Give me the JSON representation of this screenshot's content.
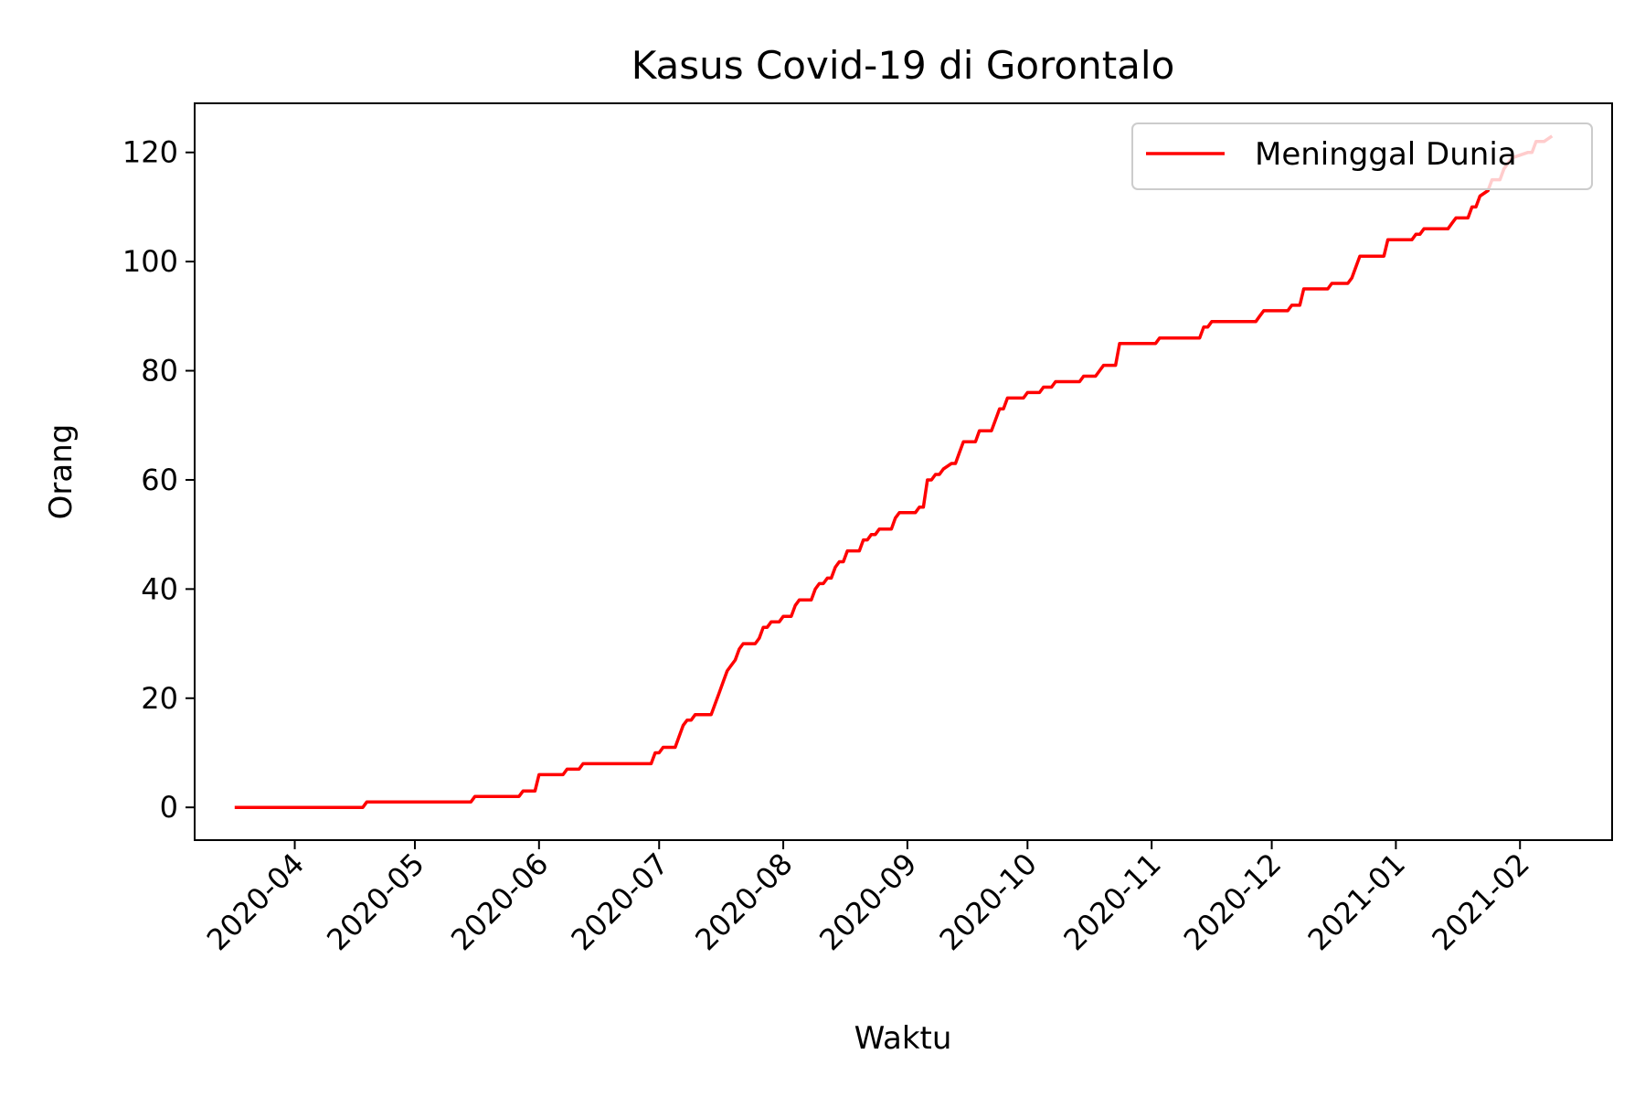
{
  "chart_data": {
    "type": "line",
    "title": "Kasus Covid-19 di Gorontalo",
    "xlabel": "Waktu",
    "ylabel": "Orang",
    "xlim": [
      "2020-03-07",
      "2021-02-24"
    ],
    "ylim": [
      -6,
      129
    ],
    "x_ticks": [
      "2020-04",
      "2020-05",
      "2020-06",
      "2020-07",
      "2020-08",
      "2020-09",
      "2020-10",
      "2020-11",
      "2020-12",
      "2021-01",
      "2021-02"
    ],
    "x_tick_dates": [
      "2020-04-01",
      "2020-05-01",
      "2020-06-01",
      "2020-07-01",
      "2020-08-01",
      "2020-09-01",
      "2020-10-01",
      "2020-11-01",
      "2020-12-01",
      "2021-01-01",
      "2021-02-01"
    ],
    "y_ticks": [
      0,
      20,
      40,
      60,
      80,
      100,
      120
    ],
    "grid": false,
    "legend": {
      "position": "top-right",
      "entries": [
        "Meninggal Dunia"
      ]
    },
    "series": [
      {
        "name": "Meninggal Dunia",
        "color": "#ff0000",
        "points": [
          [
            "2020-03-17",
            0
          ],
          [
            "2020-04-18",
            0
          ],
          [
            "2020-04-19",
            1
          ],
          [
            "2020-05-15",
            1
          ],
          [
            "2020-05-16",
            2
          ],
          [
            "2020-05-27",
            2
          ],
          [
            "2020-05-28",
            3
          ],
          [
            "2020-05-31",
            3
          ],
          [
            "2020-06-01",
            6
          ],
          [
            "2020-06-07",
            6
          ],
          [
            "2020-06-08",
            7
          ],
          [
            "2020-06-11",
            7
          ],
          [
            "2020-06-12",
            8
          ],
          [
            "2020-06-29",
            8
          ],
          [
            "2020-06-30",
            10
          ],
          [
            "2020-07-01",
            10
          ],
          [
            "2020-07-02",
            11
          ],
          [
            "2020-07-05",
            11
          ],
          [
            "2020-07-06",
            13
          ],
          [
            "2020-07-07",
            15
          ],
          [
            "2020-07-08",
            16
          ],
          [
            "2020-07-09",
            16
          ],
          [
            "2020-07-10",
            17
          ],
          [
            "2020-07-14",
            17
          ],
          [
            "2020-07-15",
            19
          ],
          [
            "2020-07-16",
            21
          ],
          [
            "2020-07-17",
            23
          ],
          [
            "2020-07-18",
            25
          ],
          [
            "2020-07-19",
            26
          ],
          [
            "2020-07-20",
            27
          ],
          [
            "2020-07-21",
            29
          ],
          [
            "2020-07-22",
            30
          ],
          [
            "2020-07-25",
            30
          ],
          [
            "2020-07-26",
            31
          ],
          [
            "2020-07-27",
            33
          ],
          [
            "2020-07-28",
            33
          ],
          [
            "2020-07-29",
            34
          ],
          [
            "2020-07-31",
            34
          ],
          [
            "2020-08-01",
            35
          ],
          [
            "2020-08-03",
            35
          ],
          [
            "2020-08-04",
            37
          ],
          [
            "2020-08-05",
            38
          ],
          [
            "2020-08-08",
            38
          ],
          [
            "2020-08-09",
            40
          ],
          [
            "2020-08-10",
            41
          ],
          [
            "2020-08-11",
            41
          ],
          [
            "2020-08-12",
            42
          ],
          [
            "2020-08-13",
            42
          ],
          [
            "2020-08-14",
            44
          ],
          [
            "2020-08-15",
            45
          ],
          [
            "2020-08-16",
            45
          ],
          [
            "2020-08-17",
            47
          ],
          [
            "2020-08-20",
            47
          ],
          [
            "2020-08-21",
            49
          ],
          [
            "2020-08-22",
            49
          ],
          [
            "2020-08-23",
            50
          ],
          [
            "2020-08-24",
            50
          ],
          [
            "2020-08-25",
            51
          ],
          [
            "2020-08-28",
            51
          ],
          [
            "2020-08-29",
            53
          ],
          [
            "2020-08-30",
            54
          ],
          [
            "2020-09-03",
            54
          ],
          [
            "2020-09-04",
            55
          ],
          [
            "2020-09-05",
            55
          ],
          [
            "2020-09-06",
            60
          ],
          [
            "2020-09-07",
            60
          ],
          [
            "2020-09-08",
            61
          ],
          [
            "2020-09-09",
            61
          ],
          [
            "2020-09-10",
            62
          ],
          [
            "2020-09-12",
            63
          ],
          [
            "2020-09-13",
            63
          ],
          [
            "2020-09-14",
            65
          ],
          [
            "2020-09-15",
            67
          ],
          [
            "2020-09-18",
            67
          ],
          [
            "2020-09-19",
            69
          ],
          [
            "2020-09-22",
            69
          ],
          [
            "2020-09-23",
            71
          ],
          [
            "2020-09-24",
            73
          ],
          [
            "2020-09-25",
            73
          ],
          [
            "2020-09-26",
            75
          ],
          [
            "2020-09-30",
            75
          ],
          [
            "2020-10-01",
            76
          ],
          [
            "2020-10-04",
            76
          ],
          [
            "2020-10-05",
            77
          ],
          [
            "2020-10-07",
            77
          ],
          [
            "2020-10-08",
            78
          ],
          [
            "2020-10-14",
            78
          ],
          [
            "2020-10-15",
            79
          ],
          [
            "2020-10-18",
            79
          ],
          [
            "2020-10-19",
            80
          ],
          [
            "2020-10-20",
            81
          ],
          [
            "2020-10-23",
            81
          ],
          [
            "2020-10-24",
            85
          ],
          [
            "2020-11-02",
            85
          ],
          [
            "2020-11-03",
            86
          ],
          [
            "2020-11-13",
            86
          ],
          [
            "2020-11-14",
            88
          ],
          [
            "2020-11-15",
            88
          ],
          [
            "2020-11-16",
            89
          ],
          [
            "2020-11-27",
            89
          ],
          [
            "2020-11-28",
            90
          ],
          [
            "2020-11-29",
            91
          ],
          [
            "2020-12-05",
            91
          ],
          [
            "2020-12-06",
            92
          ],
          [
            "2020-12-08",
            92
          ],
          [
            "2020-12-09",
            95
          ],
          [
            "2020-12-15",
            95
          ],
          [
            "2020-12-16",
            96
          ],
          [
            "2020-12-20",
            96
          ],
          [
            "2020-12-21",
            97
          ],
          [
            "2020-12-22",
            99
          ],
          [
            "2020-12-23",
            101
          ],
          [
            "2020-12-29",
            101
          ],
          [
            "2020-12-30",
            104
          ],
          [
            "2021-01-05",
            104
          ],
          [
            "2021-01-06",
            105
          ],
          [
            "2021-01-07",
            105
          ],
          [
            "2021-01-08",
            106
          ],
          [
            "2021-01-14",
            106
          ],
          [
            "2021-01-15",
            107
          ],
          [
            "2021-01-16",
            108
          ],
          [
            "2021-01-19",
            108
          ],
          [
            "2021-01-20",
            110
          ],
          [
            "2021-01-21",
            110
          ],
          [
            "2021-01-22",
            112
          ],
          [
            "2021-01-24",
            113
          ],
          [
            "2021-01-25",
            115
          ],
          [
            "2021-01-27",
            115
          ],
          [
            "2021-01-28",
            117
          ],
          [
            "2021-01-29",
            118
          ],
          [
            "2021-01-30",
            119
          ],
          [
            "2021-02-03",
            120
          ],
          [
            "2021-02-04",
            120
          ],
          [
            "2021-02-05",
            122
          ],
          [
            "2021-02-07",
            122
          ],
          [
            "2021-02-09",
            123
          ]
        ]
      }
    ]
  }
}
